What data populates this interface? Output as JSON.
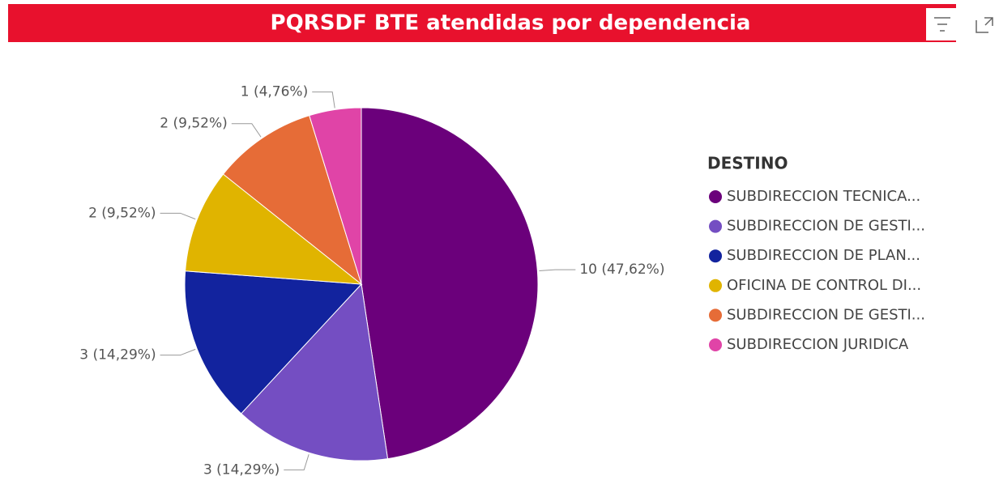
{
  "chart_data": {
    "type": "pie",
    "title": "PQRSDF BTE atendidas por dependencia",
    "legend_title": "DESTINO",
    "categories": [
      "SUBDIRECCION TECNICA...",
      "SUBDIRECCION DE GESTI...",
      "SUBDIRECCION DE PLAN...",
      "OFICINA DE CONTROL DI...",
      "SUBDIRECCION DE GESTI...",
      "SUBDIRECCION JURIDICA"
    ],
    "values": [
      10,
      3,
      3,
      2,
      2,
      1
    ],
    "value_labels": [
      "10 (47,62%)",
      "3 (14,29%)",
      "3 (14,29%)",
      "2 (9,52%)",
      "2 (9,52%)",
      "1 (4,76%)"
    ],
    "colors": [
      "#6b007b",
      "#744ec2",
      "#12239e",
      "#e0b400",
      "#e66c37",
      "#e044a7"
    ],
    "legend": "right"
  }
}
